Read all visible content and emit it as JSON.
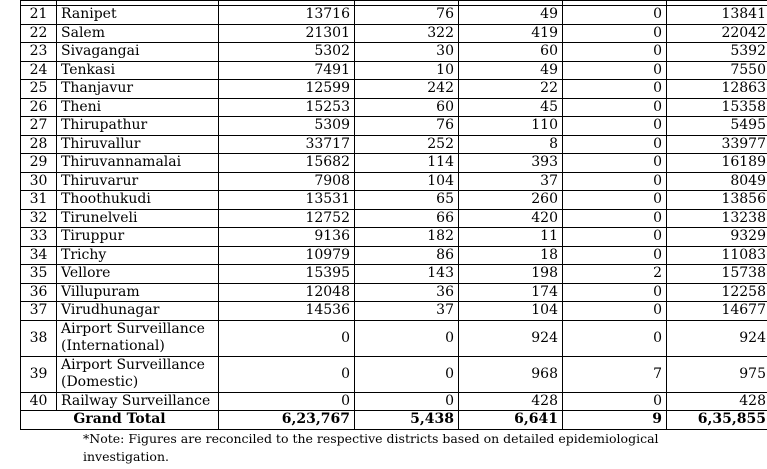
{
  "rows": [
    {
      "sn": "21",
      "name": "Ranipet",
      "a": "13716",
      "b": "76",
      "c": "49",
      "d": "0",
      "e": "13841"
    },
    {
      "sn": "22",
      "name": "Salem",
      "a": "21301",
      "b": "322",
      "c": "419",
      "d": "0",
      "e": "22042"
    },
    {
      "sn": "23",
      "name": "Sivagangai",
      "a": "5302",
      "b": "30",
      "c": "60",
      "d": "0",
      "e": "5392"
    },
    {
      "sn": "24",
      "name": "Tenkasi",
      "a": "7491",
      "b": "10",
      "c": "49",
      "d": "0",
      "e": "7550"
    },
    {
      "sn": "25",
      "name": "Thanjavur",
      "a": "12599",
      "b": "242",
      "c": "22",
      "d": "0",
      "e": "12863"
    },
    {
      "sn": "26",
      "name": "Theni",
      "a": "15253",
      "b": "60",
      "c": "45",
      "d": "0",
      "e": "15358"
    },
    {
      "sn": "27",
      "name": "Thirupathur",
      "a": "5309",
      "b": "76",
      "c": "110",
      "d": "0",
      "e": "5495"
    },
    {
      "sn": "28",
      "name": "Thiruvallur",
      "a": "33717",
      "b": "252",
      "c": "8",
      "d": "0",
      "e": "33977"
    },
    {
      "sn": "29",
      "name": "Thiruvannamalai",
      "a": "15682",
      "b": "114",
      "c": "393",
      "d": "0",
      "e": "16189"
    },
    {
      "sn": "30",
      "name": "Thiruvarur",
      "a": "7908",
      "b": "104",
      "c": "37",
      "d": "0",
      "e": "8049"
    },
    {
      "sn": "31",
      "name": "Thoothukudi",
      "a": "13531",
      "b": "65",
      "c": "260",
      "d": "0",
      "e": "13856"
    },
    {
      "sn": "32",
      "name": "Tirunelveli",
      "a": "12752",
      "b": "66",
      "c": "420",
      "d": "0",
      "e": "13238"
    },
    {
      "sn": "33",
      "name": "Tiruppur",
      "a": "9136",
      "b": "182",
      "c": "11",
      "d": "0",
      "e": "9329"
    },
    {
      "sn": "34",
      "name": "Trichy",
      "a": "10979",
      "b": "86",
      "c": "18",
      "d": "0",
      "e": "11083"
    },
    {
      "sn": "35",
      "name": "Vellore",
      "a": "15395",
      "b": "143",
      "c": "198",
      "d": "2",
      "e": "15738"
    },
    {
      "sn": "36",
      "name": "Villupuram",
      "a": "12048",
      "b": "36",
      "c": "174",
      "d": "0",
      "e": "12258"
    },
    {
      "sn": "37",
      "name": "Virudhunagar",
      "a": "14536",
      "b": "37",
      "c": "104",
      "d": "0",
      "e": "14677"
    },
    {
      "sn": "38",
      "name": "Airport Surveillance (International)",
      "a": "0",
      "b": "0",
      "c": "924",
      "d": "0",
      "e": "924"
    },
    {
      "sn": "39",
      "name": "Airport Surveillance (Domestic)",
      "a": "0",
      "b": "0",
      "c": "968",
      "d": "7",
      "e": "975"
    },
    {
      "sn": "40",
      "name": "Railway Surveillance",
      "a": "0",
      "b": "0",
      "c": "428",
      "d": "0",
      "e": "428"
    }
  ],
  "total": {
    "label": "Grand Total",
    "a": "6,23,767",
    "b": "5,438",
    "c": "6,641",
    "d": "9",
    "e": "6,35,855"
  },
  "note": "*Note: Figures are reconciled to the respective districts based on detailed epidemiological investigation."
}
